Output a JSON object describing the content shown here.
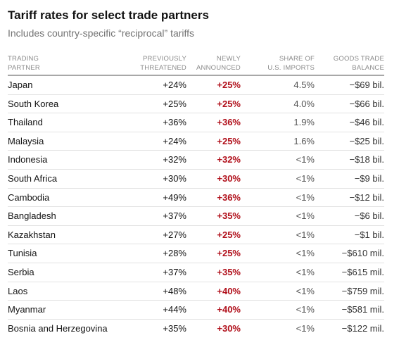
{
  "title": "Tariff rates for select trade partners",
  "subtitle": "Includes country-specific “reciprocal” tariffs",
  "columns": {
    "partner": [
      "Trading",
      "partner"
    ],
    "previous": [
      "Previously",
      "threatened"
    ],
    "newly": [
      "Newly",
      "announced"
    ],
    "share": [
      "Share of",
      "U.S. imports"
    ],
    "balance": [
      "Goods trade",
      "balance"
    ]
  },
  "colors": {
    "accent_red": "#b1101b",
    "text": "#121212",
    "muted": "#727272"
  },
  "rows": [
    {
      "partner": "Japan",
      "previous": "+24%",
      "newly": "+25%",
      "share": "4.5%",
      "balance": "−$69 bil."
    },
    {
      "partner": "South Korea",
      "previous": "+25%",
      "newly": "+25%",
      "share": "4.0%",
      "balance": "−$66 bil."
    },
    {
      "partner": "Thailand",
      "previous": "+36%",
      "newly": "+36%",
      "share": "1.9%",
      "balance": "−$46 bil."
    },
    {
      "partner": "Malaysia",
      "previous": "+24%",
      "newly": "+25%",
      "share": "1.6%",
      "balance": "−$25 bil."
    },
    {
      "partner": "Indonesia",
      "previous": "+32%",
      "newly": "+32%",
      "share": "<1%",
      "balance": "−$18 bil."
    },
    {
      "partner": "South Africa",
      "previous": "+30%",
      "newly": "+30%",
      "share": "<1%",
      "balance": "−$9 bil."
    },
    {
      "partner": "Cambodia",
      "previous": "+49%",
      "newly": "+36%",
      "share": "<1%",
      "balance": "−$12 bil."
    },
    {
      "partner": "Bangladesh",
      "previous": "+37%",
      "newly": "+35%",
      "share": "<1%",
      "balance": "−$6 bil."
    },
    {
      "partner": "Kazakhstan",
      "previous": "+27%",
      "newly": "+25%",
      "share": "<1%",
      "balance": "−$1 bil."
    },
    {
      "partner": "Tunisia",
      "previous": "+28%",
      "newly": "+25%",
      "share": "<1%",
      "balance": "−$610 mil."
    },
    {
      "partner": "Serbia",
      "previous": "+37%",
      "newly": "+35%",
      "share": "<1%",
      "balance": "−$615 mil."
    },
    {
      "partner": "Laos",
      "previous": "+48%",
      "newly": "+40%",
      "share": "<1%",
      "balance": "−$759 mil."
    },
    {
      "partner": "Myanmar",
      "previous": "+44%",
      "newly": "+40%",
      "share": "<1%",
      "balance": "−$581 mil."
    },
    {
      "partner": "Bosnia and Herzegovina",
      "previous": "+35%",
      "newly": "+30%",
      "share": "<1%",
      "balance": "−$122 mil."
    }
  ]
}
